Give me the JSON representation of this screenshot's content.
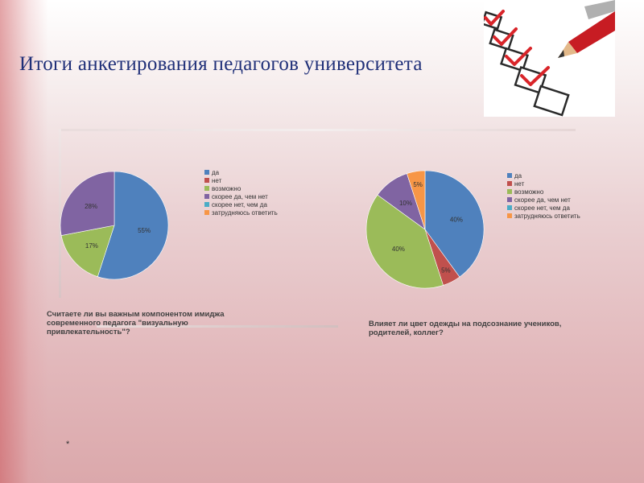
{
  "title": "Итоги анкетирования педагогов университета",
  "footnote": "*",
  "colors": {
    "title": "#1f2f78",
    "slices": [
      "#4f81bd",
      "#c0504d",
      "#9bbb59",
      "#8064a2",
      "#4bacc6",
      "#f79646"
    ]
  },
  "chart_data": [
    {
      "type": "pie",
      "title": "Считаете ли вы важным компонентом имиджа современного педагога \"визуальную привлекательность\"?",
      "legend_position": "right",
      "legend": [
        "да",
        "нет",
        "возможно",
        "скорее да, чем нет",
        "скорее нет, чем да",
        "затрудняюсь ответить"
      ],
      "values": [
        55,
        0,
        17,
        28,
        0,
        0
      ],
      "labels": [
        "55%",
        "",
        "17%",
        "28%",
        "",
        ""
      ]
    },
    {
      "type": "pie",
      "title": "Влияет ли цвет одежды на подсознание учеников, родителей, коллег?",
      "legend_position": "right",
      "legend": [
        "да",
        "нет",
        "возможно",
        "скорее да, чем нет",
        "скорее нет, чем да",
        "затрудняюсь ответить"
      ],
      "values": [
        40,
        5,
        40,
        10,
        0,
        5
      ],
      "labels": [
        "40%",
        "5%",
        "40%",
        "10%",
        "",
        "5%"
      ]
    }
  ]
}
